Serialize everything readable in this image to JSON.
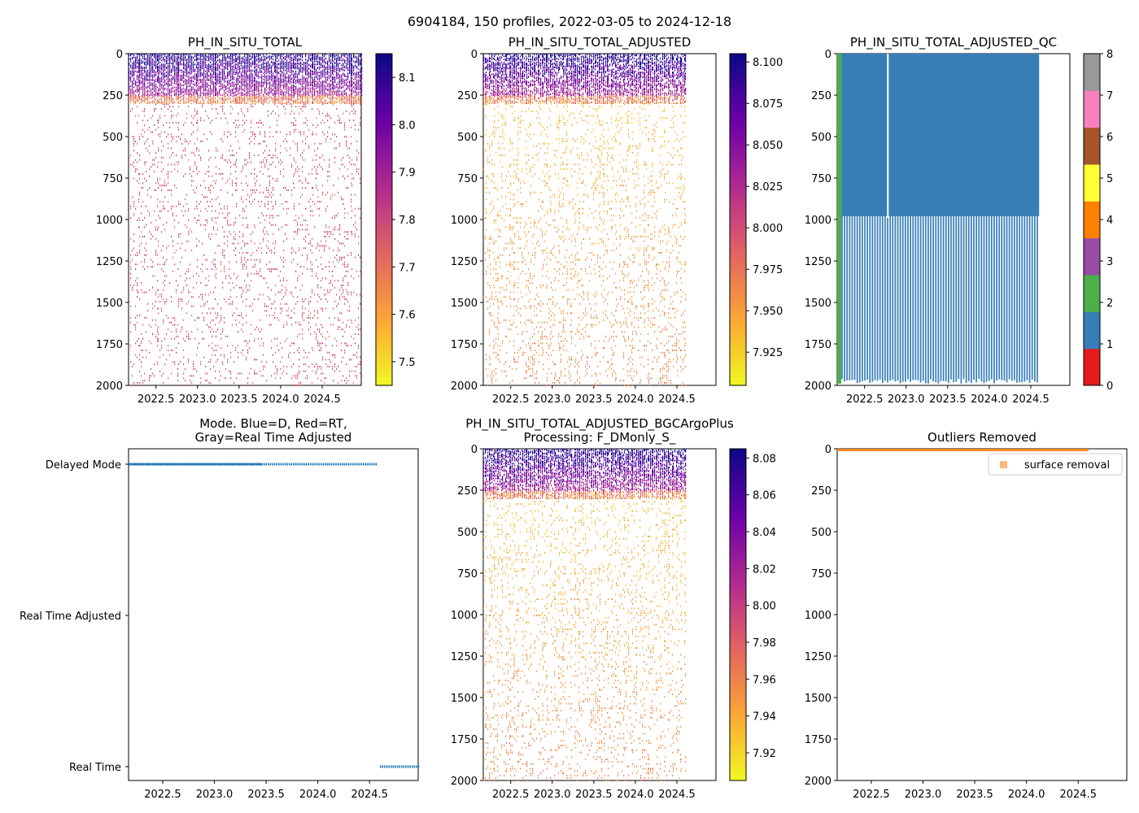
{
  "figure": {
    "suptitle": "6904184, 150 profiles, 2022-03-05 to 2024-12-18"
  },
  "colors": {
    "plasma_stops": [
      "#f0f921",
      "#fca636",
      "#e16462",
      "#b12a90",
      "#6a00a8",
      "#0d0887"
    ],
    "qc_colors": [
      "#e41a1c",
      "#377eb8",
      "#4daf4a",
      "#984ea3",
      "#ff7f00",
      "#ffff33",
      "#a65628",
      "#f781bf",
      "#999999"
    ],
    "mode_dots": "#1f77b4",
    "outlier": "#ff7f0e"
  },
  "chart_data": [
    {
      "id": "p1",
      "type": "heatmap",
      "title": "PH_IN_SITU_TOTAL",
      "xlim": [
        2022.17,
        2024.97
      ],
      "ylim": [
        2000,
        0
      ],
      "xticks": [
        "2022.5",
        "2023.0",
        "2023.5",
        "2024.0",
        "2024.5"
      ],
      "yticks": [
        "0",
        "250",
        "500",
        "750",
        "1000",
        "1250",
        "1500",
        "1750",
        "2000"
      ],
      "data_xrange": [
        2022.17,
        2024.97
      ],
      "colorbar": {
        "min": 7.45,
        "max": 8.15,
        "ticks": [
          "7.5",
          "7.6",
          "7.7",
          "7.8",
          "7.9",
          "8.0",
          "8.1"
        ]
      }
    },
    {
      "id": "p2",
      "type": "heatmap",
      "title": "PH_IN_SITU_TOTAL_ADJUSTED",
      "xlim": [
        2022.17,
        2024.97
      ],
      "ylim": [
        2000,
        0
      ],
      "xticks": [
        "2022.5",
        "2023.0",
        "2023.5",
        "2024.0",
        "2024.5"
      ],
      "yticks": [
        "0",
        "250",
        "500",
        "750",
        "1000",
        "1250",
        "1500",
        "1750",
        "2000"
      ],
      "data_xrange": [
        2022.17,
        2024.6
      ],
      "colorbar": {
        "min": 7.905,
        "max": 8.105,
        "ticks": [
          "7.925",
          "7.950",
          "7.975",
          "8.000",
          "8.025",
          "8.050",
          "8.075",
          "8.100"
        ]
      }
    },
    {
      "id": "p3",
      "type": "heatmap",
      "title": "PH_IN_SITU_TOTAL_ADJUSTED_QC",
      "xlim": [
        2022.17,
        2024.97
      ],
      "ylim": [
        2000,
        0
      ],
      "xticks": [
        "2022.5",
        "2023.0",
        "2023.5",
        "2024.0",
        "2024.5"
      ],
      "yticks": [
        "0",
        "250",
        "500",
        "750",
        "1000",
        "1250",
        "1500",
        "1750",
        "2000"
      ],
      "qc_good_xrange": [
        2022.17,
        2022.22
      ],
      "qc_probably_bad_xrange": [
        2022.22,
        2024.6
      ],
      "qc_solid_to_depth": 980,
      "qc_max_depth": 1990,
      "colorbar": {
        "min": 0,
        "max": 8,
        "ticks": [
          "0",
          "1",
          "2",
          "3",
          "4",
          "5",
          "6",
          "7",
          "8"
        ]
      }
    },
    {
      "id": "p4",
      "type": "scatter",
      "title": "Mode. Blue=D, Red=RT,\nGray=Real Time Adjusted",
      "xlim": [
        2022.17,
        2024.97
      ],
      "xticks": [
        "2022.5",
        "2023.0",
        "2023.5",
        "2024.0",
        "2024.5"
      ],
      "categories": [
        "Delayed Mode",
        "Real Time Adjusted",
        "Real Time"
      ],
      "series": [
        {
          "name": "Delayed Mode",
          "x_ranges": [
            [
              2022.17,
              2024.57
            ]
          ]
        },
        {
          "name": "Real Time",
          "x_ranges": [
            [
              2024.6,
              2024.97
            ]
          ]
        }
      ]
    },
    {
      "id": "p5",
      "type": "heatmap",
      "title": "PH_IN_SITU_TOTAL_ADJUSTED_BGCArgoPlus\nProcessing: F_DMonly_S_",
      "xlim": [
        2022.17,
        2024.97
      ],
      "ylim": [
        2000,
        0
      ],
      "xticks": [
        "2022.5",
        "2023.0",
        "2023.5",
        "2024.0",
        "2024.5"
      ],
      "yticks": [
        "0",
        "250",
        "500",
        "750",
        "1000",
        "1250",
        "1500",
        "1750",
        "2000"
      ],
      "data_xrange": [
        2022.17,
        2024.6
      ],
      "colorbar": {
        "min": 7.905,
        "max": 8.085,
        "ticks": [
          "7.92",
          "7.94",
          "7.96",
          "7.98",
          "8.00",
          "8.02",
          "8.04",
          "8.06",
          "8.08"
        ]
      }
    },
    {
      "id": "p6",
      "type": "scatter",
      "title": "Outliers Removed",
      "xlim": [
        2022.17,
        2024.97
      ],
      "ylim": [
        2000,
        0
      ],
      "xticks": [
        "2022.5",
        "2023.0",
        "2023.5",
        "2024.0",
        "2024.5"
      ],
      "yticks": [
        "0",
        "250",
        "500",
        "750",
        "1000",
        "1250",
        "1500",
        "1750",
        "2000"
      ],
      "series": [
        {
          "name": "surface removal",
          "x_range": [
            2022.17,
            2024.6
          ],
          "depth_range": [
            0,
            10
          ]
        }
      ],
      "legend": {
        "position": "top-right",
        "label": "surface removal"
      }
    }
  ]
}
